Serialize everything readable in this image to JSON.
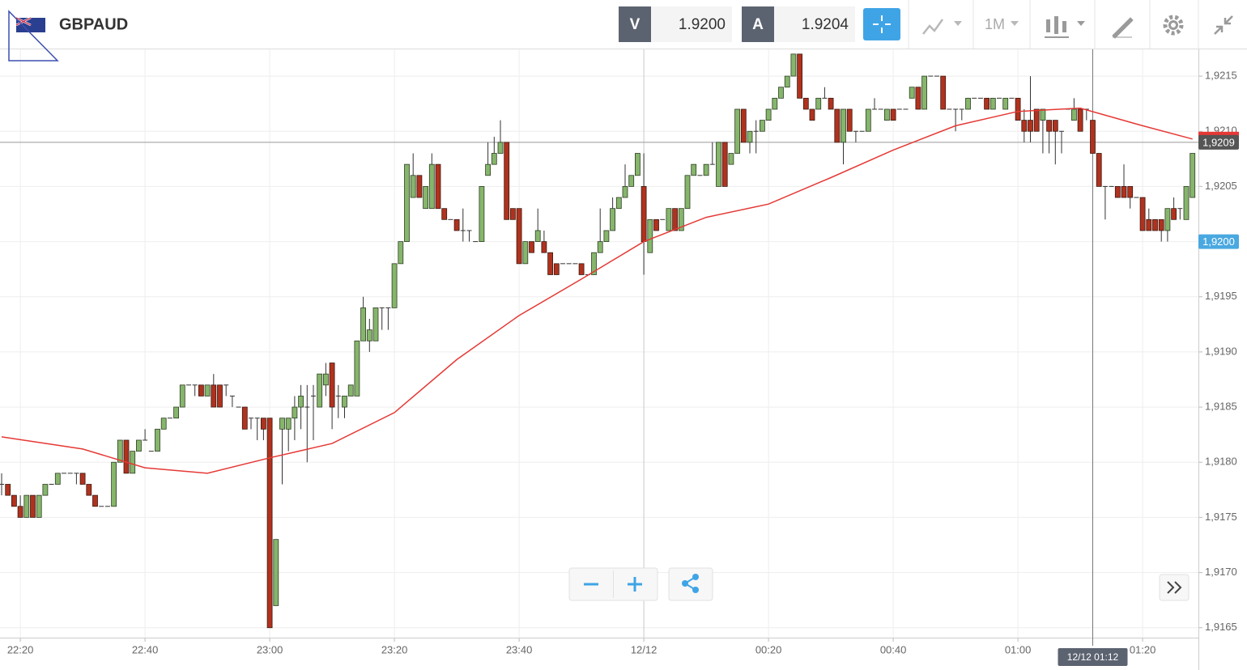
{
  "toolbar": {
    "symbol": "GBPAUD",
    "bid_label": "V",
    "bid": "1.9200",
    "ask_label": "A",
    "ask": "1.9204",
    "timeframe": "1M"
  },
  "chart_data": {
    "type": "candlestick",
    "up_color": "#86b56c",
    "down_color": "#b0321e",
    "grid": true,
    "x": [
      "22:17",
      "22:18",
      "22:19",
      "22:20",
      "22:21",
      "22:22",
      "22:23",
      "22:24",
      "22:25",
      "22:26",
      "22:27",
      "22:28",
      "22:29",
      "22:30",
      "22:31",
      "22:32",
      "22:33",
      "22:34",
      "22:35",
      "22:36",
      "22:37",
      "22:38",
      "22:39",
      "22:40",
      "22:41",
      "22:42",
      "22:43",
      "22:44",
      "22:45",
      "22:46",
      "22:47",
      "22:48",
      "22:49",
      "22:50",
      "22:51",
      "22:52",
      "22:53",
      "22:54",
      "22:55",
      "22:56",
      "22:57",
      "22:58",
      "22:59",
      "23:00",
      "23:01",
      "23:02",
      "23:03",
      "23:04",
      "23:05",
      "23:06",
      "23:07",
      "23:08",
      "23:09",
      "23:10",
      "23:11",
      "23:12",
      "23:13",
      "23:14",
      "23:15",
      "23:16",
      "23:17",
      "23:18",
      "23:19",
      "23:20",
      "23:21",
      "23:22",
      "23:23",
      "23:24",
      "23:25",
      "23:26",
      "23:27",
      "23:28",
      "23:29",
      "23:30",
      "23:31",
      "23:32",
      "23:33",
      "23:34",
      "23:35",
      "23:36",
      "23:37",
      "23:38",
      "23:39",
      "23:40",
      "23:41",
      "23:42",
      "23:43",
      "23:44",
      "23:45",
      "23:46",
      "23:47",
      "23:48",
      "23:49",
      "23:50",
      "23:51",
      "23:52",
      "23:53",
      "23:54",
      "23:55",
      "23:56",
      "23:57",
      "23:58",
      "23:59",
      "00:00",
      "00:01",
      "00:02",
      "00:03",
      "00:04",
      "00:05",
      "00:06",
      "00:07",
      "00:08",
      "00:09",
      "00:10",
      "00:11",
      "00:12",
      "00:13",
      "00:14",
      "00:15",
      "00:16",
      "00:17",
      "00:18",
      "00:19",
      "00:20",
      "00:21",
      "00:22",
      "00:23",
      "00:24",
      "00:25",
      "00:26",
      "00:27",
      "00:28",
      "00:29",
      "00:30",
      "00:31",
      "00:32",
      "00:33",
      "00:34",
      "00:35",
      "00:36",
      "00:37",
      "00:38",
      "00:39",
      "00:40",
      "00:41",
      "00:42",
      "00:43",
      "00:44",
      "00:45",
      "00:46",
      "00:47",
      "00:48",
      "00:49",
      "00:50",
      "00:51",
      "00:52",
      "00:53",
      "00:54",
      "00:55",
      "00:56",
      "00:57",
      "00:58",
      "00:59",
      "01:00",
      "01:01",
      "01:02",
      "01:03",
      "01:04",
      "01:05",
      "01:06",
      "01:07",
      "01:08",
      "01:09",
      "01:10",
      "01:11",
      "01:12",
      "01:13",
      "01:14",
      "01:15",
      "01:16",
      "01:17",
      "01:18",
      "01:19",
      "01:20",
      "01:21",
      "01:22",
      "01:23",
      "01:24",
      "01:25",
      "01:26",
      "01:27",
      "01:28"
    ],
    "open": [
      1.9178,
      1.9178,
      1.9177,
      1.9176,
      1.9175,
      1.9177,
      1.9175,
      1.9177,
      1.9178,
      1.9178,
      1.9179,
      1.9179,
      1.9179,
      1.9179,
      1.9178,
      1.9177,
      1.9176,
      1.9176,
      1.9176,
      1.918,
      1.9182,
      1.9179,
      1.9181,
      1.9182,
      1.9181,
      1.9181,
      1.9183,
      1.9184,
      1.9184,
      1.9185,
      1.9187,
      1.9187,
      1.9187,
      1.9186,
      1.9187,
      1.9187,
      1.9187,
      1.9186,
      1.9185,
      1.9185,
      1.9184,
      1.9184,
      1.9184,
      1.9184,
      1.9167,
      1.9183,
      1.9183,
      1.9184,
      1.9185,
      1.9185,
      1.9186,
      1.9185,
      1.9187,
      1.9189,
      1.9186,
      1.9185,
      1.9186,
      1.9186,
      1.9191,
      1.9191,
      1.9191,
      1.9194,
      1.9194,
      1.9194,
      1.9198,
      1.92,
      1.9204,
      1.9206,
      1.9203,
      1.9203,
      1.9207,
      1.9203,
      1.9202,
      1.9202,
      1.9201,
      1.9201,
      1.92,
      1.92,
      1.9206,
      1.9207,
      1.9208,
      1.9209,
      1.9203,
      1.9203,
      1.9198,
      1.92,
      1.92,
      1.92,
      1.9199,
      1.9198,
      1.9198,
      1.9198,
      1.9198,
      1.9198,
      1.9197,
      1.9197,
      1.9199,
      1.92,
      1.9201,
      1.9203,
      1.9204,
      1.9205,
      1.9206,
      1.9205,
      1.9199,
      1.9202,
      1.9202,
      1.9201,
      1.9203,
      1.9201,
      1.9203,
      1.9206,
      1.9206,
      1.9206,
      1.9207,
      1.9205,
      1.9209,
      1.9207,
      1.9208,
      1.9212,
      1.9209,
      1.921,
      1.921,
      1.9211,
      1.9212,
      1.9213,
      1.9214,
      1.9215,
      1.9217,
      1.9213,
      1.9212,
      1.9212,
      1.9213,
      1.9213,
      1.9212,
      1.9209,
      1.9212,
      1.921,
      1.921,
      1.921,
      1.9212,
      1.9212,
      1.9211,
      1.9212,
      1.9212,
      1.9212,
      1.9213,
      1.9214,
      1.9212,
      1.9215,
      1.9215,
      1.9215,
      1.9212,
      1.9212,
      1.9212,
      1.9212,
      1.9213,
      1.9213,
      1.9213,
      1.9212,
      1.9213,
      1.9212,
      1.9213,
      1.9213,
      1.9211,
      1.9211,
      1.9212,
      1.9211,
      1.9211,
      1.9211,
      1.921,
      1.9212,
      1.9211,
      1.9212,
      1.9212,
      1.9211,
      1.9208,
      1.9205,
      1.9205,
      1.9205,
      1.9205,
      1.9205,
      1.9204,
      1.9204,
      1.9202,
      1.9202,
      1.9202,
      1.9201,
      1.9203,
      1.9203,
      1.9202,
      1.9204
    ],
    "high": [
      1.9179,
      1.9178,
      1.9177,
      1.9177,
      1.9177,
      1.9177,
      1.9177,
      1.9178,
      1.9178,
      1.9179,
      1.9179,
      1.9179,
      1.9179,
      1.9179,
      1.9178,
      1.9177,
      1.9176,
      1.9176,
      1.918,
      1.9182,
      1.9182,
      1.9181,
      1.9182,
      1.9183,
      1.9181,
      1.9183,
      1.9184,
      1.9184,
      1.9185,
      1.9187,
      1.9187,
      1.9187,
      1.9187,
      1.9187,
      1.9188,
      1.9187,
      1.9187,
      1.9186,
      1.9185,
      1.9185,
      1.9184,
      1.9184,
      1.9184,
      1.9184,
      1.9173,
      1.9184,
      1.9184,
      1.9186,
      1.9187,
      1.9187,
      1.9187,
      1.9188,
      1.9189,
      1.9189,
      1.9187,
      1.9186,
      1.9187,
      1.9191,
      1.9195,
      1.9193,
      1.9194,
      1.9194,
      1.9194,
      1.9198,
      1.92,
      1.9207,
      1.9208,
      1.9206,
      1.9205,
      1.9208,
      1.9207,
      1.9203,
      1.9202,
      1.9202,
      1.9203,
      1.9201,
      1.92,
      1.9205,
      1.9209,
      1.92095,
      1.9211,
      1.9209,
      1.9203,
      1.9203,
      1.92,
      1.92,
      1.9203,
      1.9201,
      1.9199,
      1.9198,
      1.9198,
      1.9198,
      1.9198,
      1.9198,
      1.9197,
      1.9199,
      1.9203,
      1.9201,
      1.9204,
      1.9204,
      1.9207,
      1.9206,
      1.9208,
      1.9208,
      1.9202,
      1.9202,
      1.9202,
      1.9203,
      1.9203,
      1.9203,
      1.9206,
      1.9207,
      1.9206,
      1.9207,
      1.9209,
      1.9209,
      1.9209,
      1.9208,
      1.9212,
      1.9212,
      1.921,
      1.9211,
      1.9211,
      1.9212,
      1.9213,
      1.9214,
      1.9215,
      1.9217,
      1.9217,
      1.9213,
      1.9212,
      1.9213,
      1.9214,
      1.9213,
      1.9212,
      1.9212,
      1.9212,
      1.921,
      1.921,
      1.9212,
      1.9213,
      1.9212,
      1.9212,
      1.9212,
      1.9212,
      1.9212,
      1.9214,
      1.9214,
      1.9215,
      1.9215,
      1.9215,
      1.9215,
      1.9212,
      1.9212,
      1.9212,
      1.9213,
      1.9213,
      1.9213,
      1.9213,
      1.9213,
      1.9213,
      1.9213,
      1.9213,
      1.9213,
      1.9212,
      1.9215,
      1.9212,
      1.9212,
      1.9211,
      1.9211,
      1.921,
      1.9212,
      1.9213,
      1.9212,
      1.9212,
      1.9211,
      1.9208,
      1.9205,
      1.9205,
      1.9205,
      1.9207,
      1.9205,
      1.9204,
      1.9204,
      1.9203,
      1.9202,
      1.9202,
      1.9203,
      1.9204,
      1.9203,
      1.9205,
      1.9208
    ],
    "low": [
      1.9177,
      1.9177,
      1.9176,
      1.9175,
      1.9175,
      1.9175,
      1.9175,
      1.9177,
      1.9178,
      1.9178,
      1.9179,
      1.9179,
      1.9178,
      1.9178,
      1.9177,
      1.9176,
      1.9176,
      1.9176,
      1.9176,
      1.918,
      1.9179,
      1.9179,
      1.9181,
      1.9182,
      1.9181,
      1.9181,
      1.9183,
      1.9184,
      1.9184,
      1.9185,
      1.9187,
      1.9186,
      1.9186,
      1.9186,
      1.9185,
      1.9185,
      1.9186,
      1.9185,
      1.9185,
      1.9183,
      1.9183,
      1.9182,
      1.9182,
      1.9165,
      1.9167,
      1.9178,
      1.9181,
      1.9182,
      1.9183,
      1.918,
      1.9182,
      1.9185,
      1.9186,
      1.9183,
      1.9184,
      1.9184,
      1.9186,
      1.9186,
      1.9191,
      1.919,
      1.9191,
      1.9192,
      1.9192,
      1.9194,
      1.9198,
      1.92,
      1.9204,
      1.9204,
      1.9203,
      1.9203,
      1.9203,
      1.9202,
      1.9202,
      1.9201,
      1.92,
      1.92,
      1.92,
      1.92,
      1.9206,
      1.9207,
      1.9208,
      1.9202,
      1.9202,
      1.9198,
      1.9198,
      1.9199,
      1.92,
      1.9199,
      1.9197,
      1.9197,
      1.9198,
      1.9198,
      1.9198,
      1.9197,
      1.9197,
      1.9197,
      1.9199,
      1.92,
      1.9201,
      1.9203,
      1.9204,
      1.9205,
      1.9206,
      1.9197,
      1.9199,
      1.9201,
      1.9202,
      1.9201,
      1.9201,
      1.9201,
      1.9203,
      1.9206,
      1.9206,
      1.9206,
      1.9207,
      1.9205,
      1.9205,
      1.9207,
      1.9208,
      1.9209,
      1.9208,
      1.9208,
      1.921,
      1.9211,
      1.9212,
      1.9213,
      1.9214,
      1.9215,
      1.9213,
      1.9212,
      1.9211,
      1.9212,
      1.9213,
      1.9212,
      1.9209,
      1.9207,
      1.921,
      1.9209,
      1.921,
      1.921,
      1.9212,
      1.9212,
      1.9211,
      1.9211,
      1.9212,
      1.9212,
      1.9213,
      1.9212,
      1.9212,
      1.9215,
      1.9215,
      1.9212,
      1.9212,
      1.921,
      1.9211,
      1.9212,
      1.9213,
      1.9213,
      1.9212,
      1.9212,
      1.9213,
      1.9212,
      1.9213,
      1.9211,
      1.9209,
      1.9209,
      1.921,
      1.9208,
      1.9208,
      1.9207,
      1.9208,
      1.9212,
      1.9211,
      1.921,
      1.9211,
      1.9208,
      1.9205,
      1.9202,
      1.9205,
      1.9204,
      1.9204,
      1.9203,
      1.9204,
      1.9201,
      1.9201,
      1.9201,
      1.92,
      1.92,
      1.9202,
      1.9202,
      1.9202,
      1.9204
    ],
    "close": [
      1.9178,
      1.9177,
      1.9176,
      1.9175,
      1.9177,
      1.9175,
      1.9177,
      1.9178,
      1.9178,
      1.9179,
      1.9179,
      1.9179,
      1.9179,
      1.9178,
      1.9177,
      1.9176,
      1.9176,
      1.9176,
      1.918,
      1.9182,
      1.9179,
      1.9181,
      1.9182,
      1.9182,
      1.9181,
      1.9183,
      1.9184,
      1.9184,
      1.9185,
      1.9187,
      1.9187,
      1.9187,
      1.9186,
      1.9187,
      1.9185,
      1.9185,
      1.9187,
      1.9186,
      1.9185,
      1.9183,
      1.9184,
      1.9184,
      1.9183,
      1.9165,
      1.9173,
      1.9184,
      1.9184,
      1.9185,
      1.9186,
      1.9185,
      1.9186,
      1.9188,
      1.9188,
      1.9185,
      1.9186,
      1.9186,
      1.9187,
      1.9191,
      1.9194,
      1.9192,
      1.9194,
      1.9194,
      1.9194,
      1.9198,
      1.92,
      1.9207,
      1.9206,
      1.9204,
      1.9205,
      1.9207,
      1.9203,
      1.9202,
      1.9202,
      1.9201,
      1.9201,
      1.9201,
      1.92,
      1.9205,
      1.9207,
      1.9208,
      1.9209,
      1.9202,
      1.9202,
      1.9198,
      1.92,
      1.9199,
      1.9201,
      1.9199,
      1.9197,
      1.9197,
      1.9198,
      1.9198,
      1.9198,
      1.9197,
      1.9197,
      1.9199,
      1.92,
      1.9201,
      1.9203,
      1.9204,
      1.9205,
      1.9206,
      1.9208,
      1.92,
      1.9202,
      1.9201,
      1.9202,
      1.9203,
      1.9201,
      1.9203,
      1.9206,
      1.9207,
      1.9206,
      1.9207,
      1.9207,
      1.9209,
      1.9205,
      1.9208,
      1.9212,
      1.9209,
      1.921,
      1.921,
      1.9211,
      1.9212,
      1.9213,
      1.9214,
      1.9215,
      1.9217,
      1.9213,
      1.9212,
      1.9211,
      1.9213,
      1.9213,
      1.9212,
      1.9209,
      1.9212,
      1.921,
      1.921,
      1.921,
      1.9212,
      1.9212,
      1.9212,
      1.9212,
      1.9211,
      1.9212,
      1.9212,
      1.9214,
      1.9212,
      1.9215,
      1.9215,
      1.9215,
      1.9212,
      1.9212,
      1.9212,
      1.9212,
      1.9213,
      1.9213,
      1.9213,
      1.9212,
      1.9213,
      1.9213,
      1.9213,
      1.9213,
      1.9211,
      1.921,
      1.921,
      1.921,
      1.9212,
      1.921,
      1.921,
      1.921,
      1.9212,
      1.9212,
      1.921,
      1.9212,
      1.9208,
      1.9205,
      1.9205,
      1.9205,
      1.9204,
      1.9204,
      1.9204,
      1.9204,
      1.9201,
      1.9201,
      1.9201,
      1.9201,
      1.9203,
      1.9202,
      1.9203,
      1.9205,
      1.9208
    ],
    "ma": {
      "color": "#e53935",
      "x": [
        "22:17",
        "22:30",
        "22:40",
        "22:50",
        "23:00",
        "23:10",
        "23:20",
        "23:30",
        "23:40",
        "23:50",
        "00:00",
        "00:10",
        "00:20",
        "00:30",
        "00:40",
        "00:50",
        "01:00",
        "01:10",
        "01:20",
        "01:28"
      ],
      "values": [
        1.91823,
        1.91812,
        1.91795,
        1.9179,
        1.91804,
        1.91817,
        1.91845,
        1.91893,
        1.91933,
        1.91966,
        1.92,
        1.92022,
        1.92034,
        1.92058,
        1.92083,
        1.92105,
        1.92118,
        1.92121,
        1.92105,
        1.92093
      ]
    },
    "ylim": [
      1.91641,
      1.92175
    ],
    "yticks": [
      {
        "value": 1.9165,
        "label": "1,9165"
      },
      {
        "value": 1.917,
        "label": "1,9170"
      },
      {
        "value": 1.9175,
        "label": "1,9175"
      },
      {
        "value": 1.918,
        "label": "1,9180"
      },
      {
        "value": 1.9185,
        "label": "1,9185"
      },
      {
        "value": 1.919,
        "label": "1,9190"
      },
      {
        "value": 1.9195,
        "label": "1,9195"
      },
      {
        "value": 1.92,
        "label": "1,9200"
      },
      {
        "value": 1.9205,
        "label": "1,9205"
      },
      {
        "value": 1.921,
        "label": "1,9210"
      },
      {
        "value": 1.9215,
        "label": "1,9215"
      }
    ],
    "xticks": [
      "22:20",
      "22:40",
      "23:00",
      "23:20",
      "23:40",
      {
        "value": "00:00",
        "label": "12/12"
      },
      "00:20",
      "00:40",
      "01:00",
      "01:20"
    ],
    "price_lines": [
      {
        "value": 1.9209,
        "label": "1,9209",
        "color": "#555555",
        "line": true
      },
      {
        "value": 1.92,
        "label": "1,9200",
        "color": "#4aa8e0",
        "line": false
      }
    ],
    "crosshair": {
      "x": "01:12",
      "label": "12/12 01:12"
    }
  }
}
